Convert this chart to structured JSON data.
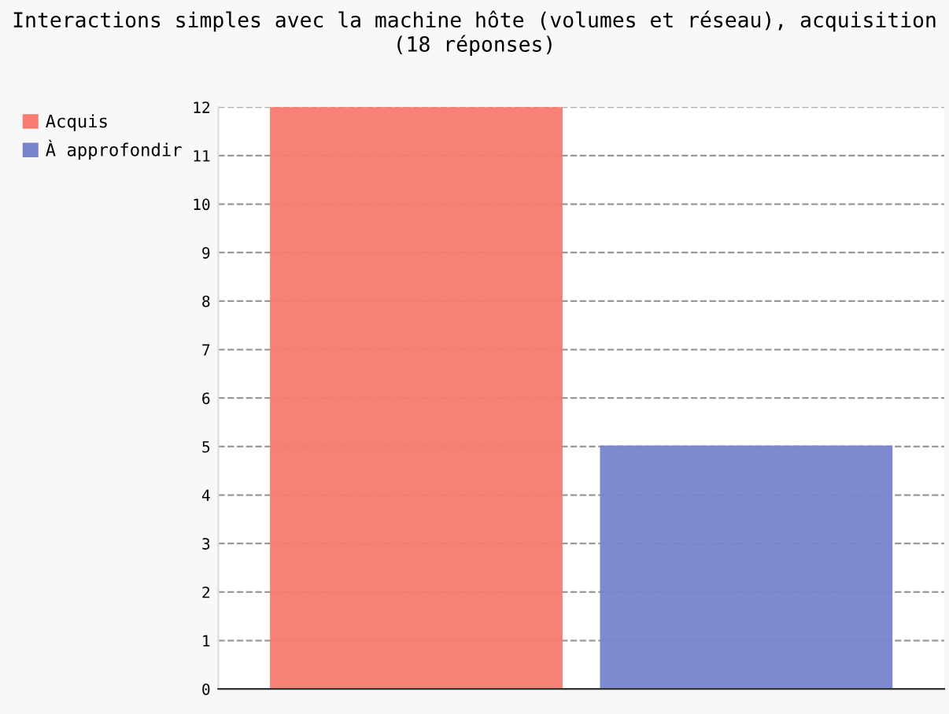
{
  "chart_data": {
    "type": "bar",
    "title": "Interactions simples avec la machine hôte (volumes et réseau), acquisition\n(18 réponses)",
    "categories": [
      null,
      null
    ],
    "series": [
      {
        "name": "Acquis",
        "color": "#f77b6f",
        "values": [
          12,
          null
        ]
      },
      {
        "name": "À approfondir",
        "color": "#7784cc",
        "values": [
          null,
          5
        ]
      }
    ],
    "ylim": [
      0,
      12
    ],
    "yticks": [
      0,
      1,
      2,
      3,
      4,
      5,
      6,
      7,
      8,
      9,
      10,
      11,
      12
    ],
    "grid": "y",
    "line_style": "dashed",
    "legend": "top left"
  }
}
